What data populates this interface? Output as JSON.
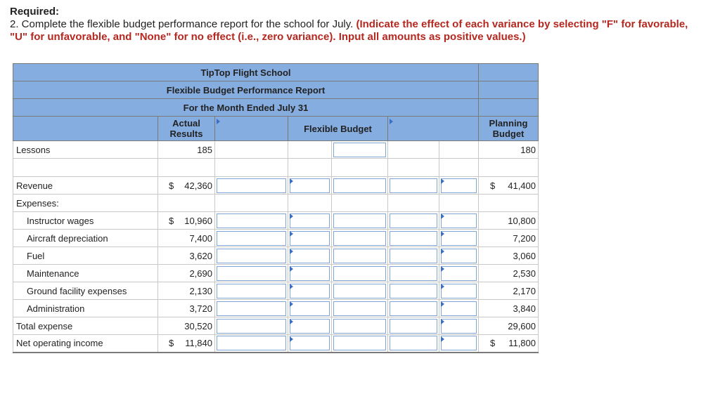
{
  "required_label": "Required:",
  "instruction_plain": "2. Complete the flexible budget performance report for the school for July. ",
  "instruction_red": "(Indicate the effect of each variance by selecting \"F\" for favorable, \"U\" for unfavorable, and \"None\" for no effect (i.e., zero variance). Input all amounts as positive values.)",
  "report": {
    "company": "TipTop Flight School",
    "title": "Flexible Budget Performance Report",
    "period": "For the Month Ended July 31",
    "col_actual": "Actual Results",
    "col_flexible": "Flexible Budget",
    "col_planning": "Planning Budget",
    "lessons": {
      "label": "Lessons",
      "actual": "185",
      "planning": "180"
    },
    "revenue": {
      "label": "Revenue",
      "actual_dollar": "$",
      "actual": "42,360",
      "planning_dollar": "$",
      "planning": "41,400"
    },
    "expenses_label": "Expenses:",
    "expenses": [
      {
        "label": "Instructor wages",
        "actual_dollar": "$",
        "actual": "10,960",
        "planning": "10,800"
      },
      {
        "label": "Aircraft depreciation",
        "actual_dollar": "",
        "actual": "7,400",
        "planning": "7,200"
      },
      {
        "label": "Fuel",
        "actual_dollar": "",
        "actual": "3,620",
        "planning": "3,060"
      },
      {
        "label": "Maintenance",
        "actual_dollar": "",
        "actual": "2,690",
        "planning": "2,530"
      },
      {
        "label": "Ground facility expenses",
        "actual_dollar": "",
        "actual": "2,130",
        "planning": "2,170"
      },
      {
        "label": "Administration",
        "actual_dollar": "",
        "actual": "3,720",
        "planning": "3,840"
      }
    ],
    "total_expense": {
      "label": "Total expense",
      "actual": "30,520",
      "planning": "29,600"
    },
    "net_income": {
      "label": "Net operating income",
      "actual_dollar": "$",
      "actual": "11,840",
      "planning_dollar": "$",
      "planning": "11,800"
    }
  }
}
